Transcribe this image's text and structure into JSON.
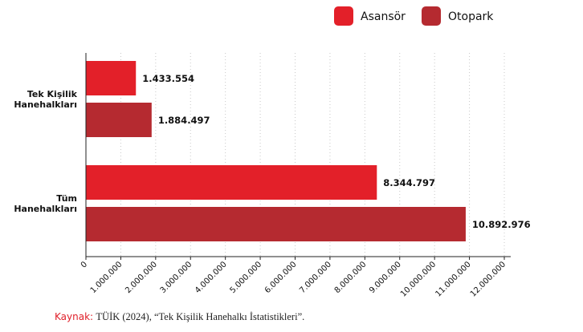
{
  "chart_data": {
    "type": "bar",
    "orientation": "horizontal",
    "categories": [
      "Tek Kişilik\nHanehalkları",
      "Tüm\nHanehalkları"
    ],
    "series": [
      {
        "name": "Asansör",
        "color": "#e32029",
        "values": [
          1433554,
          8344797
        ],
        "labels": [
          "1.433.554",
          "8.344.797"
        ]
      },
      {
        "name": "Otopark",
        "color": "#b52a30",
        "values": [
          1884497,
          10892976
        ],
        "labels": [
          "1.884.497",
          "10.892.976"
        ]
      }
    ],
    "x_ticks": [
      "0",
      "1.000.000",
      "2.000.000",
      "3.000.000",
      "4.000.000",
      "5.000.000",
      "6.000.000",
      "7.000.000",
      "8.000.000",
      "9.000.000",
      "10.000.000",
      "11.000.000",
      "12.000.000"
    ],
    "xlim": [
      0,
      12000000
    ],
    "grid": "vertical dotted",
    "legend_position": "top-right"
  },
  "source": {
    "key": "Kaynak:",
    "text": "TÜİK (2024), “Tek Kişilik Hanehalkı İstatistikleri”."
  }
}
